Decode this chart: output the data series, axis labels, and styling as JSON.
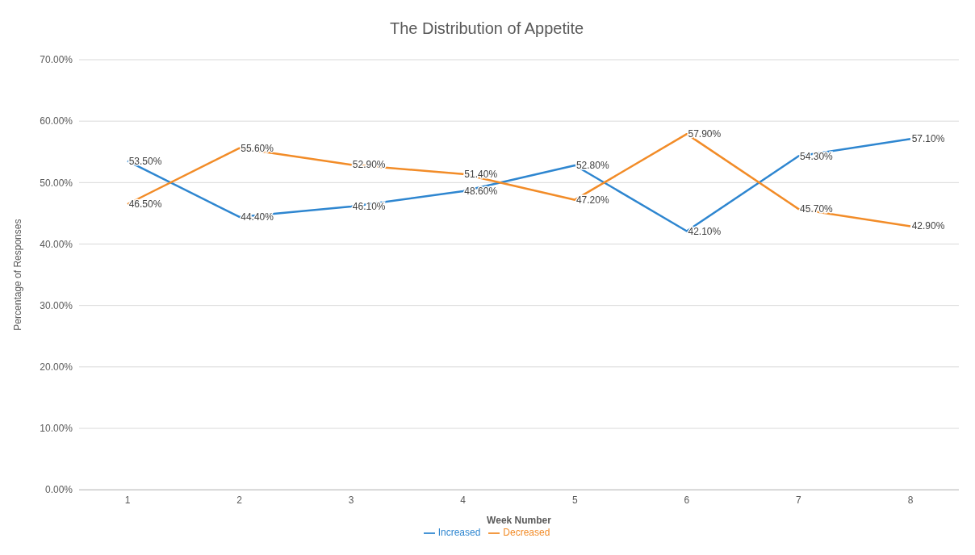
{
  "chart_data": {
    "type": "line",
    "title": "The Distribution of Appetite",
    "xlabel": "Week Number",
    "ylabel": "Percentage of Responses",
    "categories": [
      "1",
      "2",
      "3",
      "4",
      "5",
      "6",
      "7",
      "8"
    ],
    "series": [
      {
        "name": "Increased",
        "color": "#2e86d0",
        "values": [
          53.5,
          44.4,
          46.1,
          48.6,
          52.8,
          42.1,
          54.3,
          57.1
        ],
        "value_labels": [
          "53.50%",
          "44.40%",
          "46.10%",
          "48.60%",
          "52.80%",
          "42.10%",
          "54.30%",
          "57.10%"
        ]
      },
      {
        "name": "Decreased",
        "color": "#f28c28",
        "values": [
          46.5,
          55.6,
          52.9,
          51.4,
          47.2,
          57.9,
          45.7,
          42.9
        ],
        "value_labels": [
          "46.50%",
          "55.60%",
          "52.90%",
          "51.40%",
          "47.20%",
          "57.90%",
          "45.70%",
          "42.90%"
        ]
      }
    ],
    "ylim": [
      0,
      70
    ],
    "yticks": [
      {
        "value": 0,
        "label": "0.00%"
      },
      {
        "value": 10,
        "label": "10.00%"
      },
      {
        "value": 20,
        "label": "20.00%"
      },
      {
        "value": 30,
        "label": "30.00%"
      },
      {
        "value": 40,
        "label": "40.00%"
      },
      {
        "value": 50,
        "label": "50.00%"
      },
      {
        "value": 60,
        "label": "60.00%"
      },
      {
        "value": 70,
        "label": "70.00%"
      }
    ],
    "grid": "y",
    "legend": "bottom",
    "marker": "none",
    "line_style": "solid"
  }
}
